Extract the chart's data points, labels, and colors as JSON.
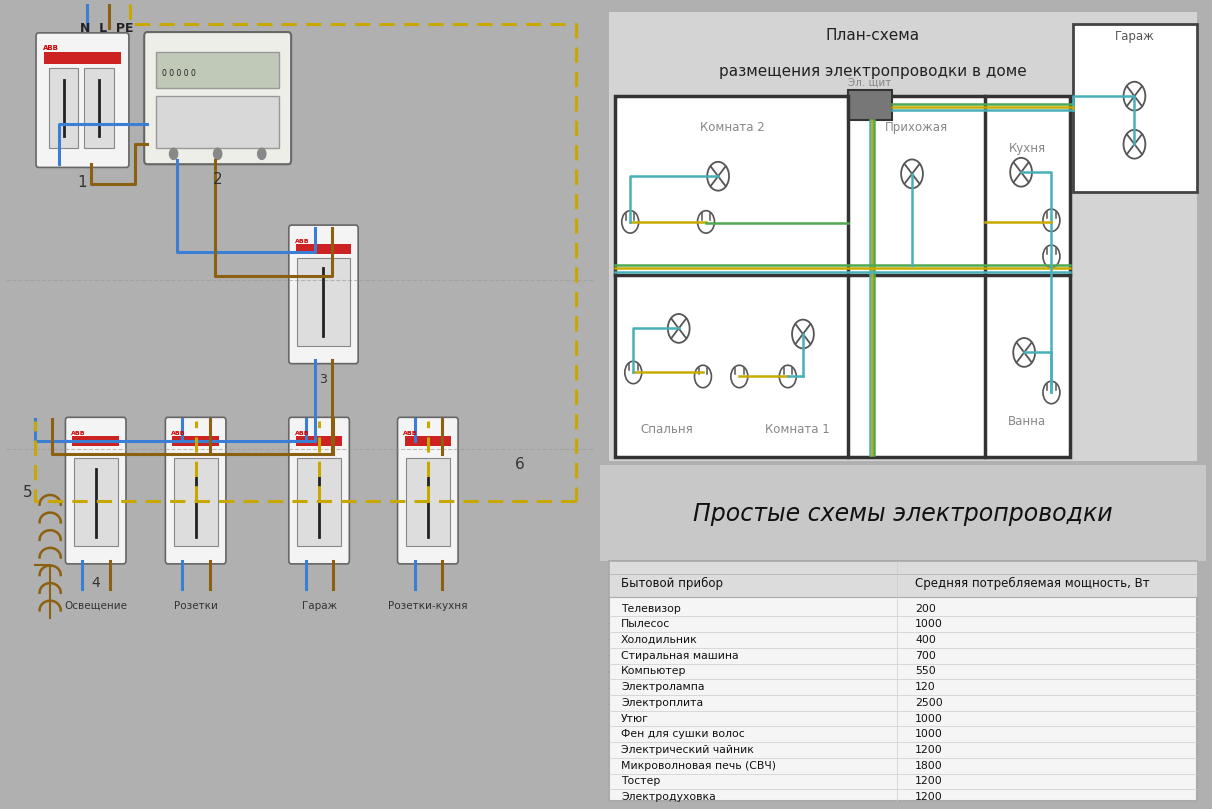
{
  "title_right_bottom": "Простые схемы электропроводки",
  "table_header_col1": "Бытовой прибор",
  "table_header_col2": "Средняя потребляемая мощность, Вт",
  "table_rows": [
    [
      "Телевизор",
      "200"
    ],
    [
      "Пылесос",
      "1000"
    ],
    [
      "Холодильник",
      "400"
    ],
    [
      "Стиральная машина",
      "700"
    ],
    [
      "Компьютер",
      "550"
    ],
    [
      "Электролампа",
      "120"
    ],
    [
      "Электроплита",
      "2500"
    ],
    [
      "Утюг",
      "1000"
    ],
    [
      "Фен для сушки волос",
      "1000"
    ],
    [
      "Электрический чайник",
      "1200"
    ],
    [
      "Микроволновая печь (СВЧ)",
      "1800"
    ],
    [
      "Тостер",
      "1200"
    ],
    [
      "Электродуховка",
      "1200"
    ]
  ],
  "plan_title_line1": "План-схема",
  "plan_title_line2": "размещения электропроводки в доме",
  "rooms": [
    "Комната 2",
    "Прихожая",
    "Кухня",
    "Спальня",
    "Комната 1",
    "Ванна",
    "Гараж"
  ],
  "el_shield_label": "Эл. щит",
  "bottom_labels": [
    "Освещение",
    "Розетки",
    "Гараж",
    "Розетки-кухня"
  ],
  "bg_left": "#e8e8e8",
  "bg_right": "#c8c8c8",
  "bg_plan": "#e8e8e8",
  "bg_table": "#f2f2f2",
  "wire_blue": "#3a7fd5",
  "wire_yg": "#c8a800",
  "wire_green": "#5aaa50",
  "wire_brown": "#8B6010",
  "wire_cyan": "#50b8c8",
  "wire_teal": "#40a0a0"
}
